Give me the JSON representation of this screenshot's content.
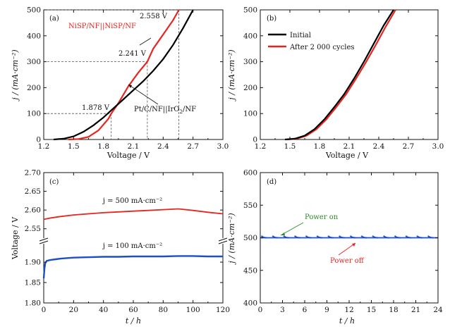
{
  "chart_data": [
    {
      "panel": "(a)",
      "type": "line",
      "xlabel": "Voltage / V",
      "ylabel": "j / (mA·cm⁻²)",
      "xlim": [
        1.2,
        3.0
      ],
      "ylim": [
        0,
        500
      ],
      "xticks": [
        "1.2",
        "1.5",
        "1.8",
        "2.1",
        "2.4",
        "2.7",
        "3.0"
      ],
      "yticks": [
        "0",
        "100",
        "200",
        "300",
        "400",
        "500"
      ],
      "series": [
        {
          "name": "NiSP/NF||NiSP/NF",
          "color": "#e8241f",
          "x": [
            1.45,
            1.55,
            1.65,
            1.75,
            1.85,
            1.878,
            1.95,
            2.05,
            2.15,
            2.241,
            2.3,
            2.4,
            2.5,
            2.558
          ],
          "y": [
            0,
            2,
            10,
            35,
            80,
            100,
            140,
            205,
            258,
            300,
            350,
            405,
            460,
            500
          ]
        },
        {
          "name": "Pt/C/NF||IrO2/NF",
          "color": "#000000",
          "x": [
            1.3,
            1.4,
            1.5,
            1.6,
            1.7,
            1.8,
            1.9,
            2.0,
            2.1,
            2.2,
            2.3,
            2.4,
            2.5,
            2.6,
            2.7
          ],
          "y": [
            0,
            3,
            12,
            30,
            55,
            85,
            120,
            155,
            190,
            225,
            265,
            310,
            365,
            430,
            500
          ]
        }
      ],
      "annotations": [
        "1.878 V",
        "2.241 V",
        "2.558 V",
        "NiSP/NF||NiSP/NF",
        "Pt/C/NF||IrO₂/NF"
      ]
    },
    {
      "panel": "(b)",
      "type": "line",
      "xlabel": "Voltage / V",
      "ylabel": "j / (mA·cm⁻²)",
      "xlim": [
        1.2,
        3.0
      ],
      "ylim": [
        0,
        500
      ],
      "xticks": [
        "1.2",
        "1.5",
        "1.8",
        "2.1",
        "2.4",
        "2.7",
        "3.0"
      ],
      "yticks": [
        "0",
        "100",
        "200",
        "300",
        "400",
        "500"
      ],
      "series": [
        {
          "name": "Initial",
          "color": "#000000",
          "x": [
            1.45,
            1.55,
            1.65,
            1.75,
            1.85,
            1.95,
            2.05,
            2.15,
            2.25,
            2.35,
            2.45,
            2.55
          ],
          "y": [
            0,
            3,
            15,
            40,
            78,
            125,
            175,
            235,
            300,
            370,
            440,
            500
          ]
        },
        {
          "name": "After 2 000 cycles",
          "color": "#e8241f",
          "x": [
            1.47,
            1.57,
            1.67,
            1.77,
            1.87,
            1.97,
            2.07,
            2.17,
            2.27,
            2.37,
            2.47,
            2.57
          ],
          "y": [
            0,
            3,
            15,
            40,
            78,
            125,
            175,
            235,
            298,
            365,
            435,
            500
          ]
        }
      ]
    },
    {
      "panel": "(c)",
      "type": "line",
      "xlabel": "t / h",
      "ylabel": "Voltage / V",
      "xlim": [
        0,
        120
      ],
      "xticks": [
        "0",
        "20",
        "40",
        "60",
        "80",
        "100",
        "120"
      ],
      "yticks_upper": [
        "2.55",
        "2.60",
        "2.65",
        "2.70"
      ],
      "yticks_lower": [
        "1.80",
        "1.85",
        "1.90"
      ],
      "series": [
        {
          "name": "j = 500 mA·cm⁻²",
          "color": "#e8241f",
          "x": [
            0,
            5,
            10,
            20,
            30,
            40,
            50,
            60,
            70,
            80,
            90,
            100,
            110,
            120
          ],
          "y": [
            2.575,
            2.579,
            2.582,
            2.587,
            2.59,
            2.593,
            2.595,
            2.597,
            2.599,
            2.601,
            2.603,
            2.599,
            2.594,
            2.59
          ]
        },
        {
          "name": "j = 100 mA·cm⁻²",
          "color": "#1f4fc8",
          "x": [
            0,
            0.5,
            1,
            2,
            4,
            8,
            12,
            20,
            30,
            40,
            50,
            60,
            70,
            80,
            90,
            100,
            110,
            120
          ],
          "y": [
            1.86,
            1.885,
            1.897,
            1.903,
            1.905,
            1.907,
            1.909,
            1.911,
            1.912,
            1.913,
            1.913,
            1.914,
            1.914,
            1.914,
            1.915,
            1.915,
            1.914,
            1.914
          ]
        }
      ]
    },
    {
      "panel": "(d)",
      "type": "line",
      "xlabel": "t / h",
      "ylabel": "j / (mA·cm⁻²)",
      "xlim": [
        0,
        24
      ],
      "ylim": [
        400,
        600
      ],
      "xticks": [
        "0",
        "3",
        "6",
        "9",
        "12",
        "15",
        "18",
        "21",
        "24"
      ],
      "yticks": [
        "400",
        "450",
        "500",
        "550",
        "600"
      ],
      "series": [
        {
          "name": "j",
          "color": "#1f4fc8",
          "cycle_period_h": 1.5,
          "baseline": 500,
          "peak": 503,
          "x": [
            0,
            24
          ],
          "y": [
            500,
            500
          ]
        }
      ],
      "annotations": [
        "Power on",
        "Power off"
      ]
    }
  ],
  "labels": {
    "a": "(a)",
    "b": "(b)",
    "c": "(c)",
    "d": "(d)",
    "volt_a1": "1.878 V",
    "volt_a2": "2.241 V",
    "volt_a3": "2.558 V",
    "nisp": "NiSP/NF||NiSP/NF",
    "ptc_main": "Pt/C/NF||IrO",
    "ptc_sub": "2",
    "ptc_tail": "/NF",
    "legend_b1": "Initial",
    "legend_b2": "After 2 000 cycles",
    "c_label_500": "j = 500 mA·cm⁻²",
    "c_label_100": "j = 100 mA·cm⁻²",
    "power_on": "Power on",
    "power_off": "Power off",
    "xlabel_v": "Voltage / V",
    "xlabel_t": "t / h",
    "ylabel_j": "j / (mA·cm⁻²)",
    "ylabel_v": "Voltage / V"
  }
}
